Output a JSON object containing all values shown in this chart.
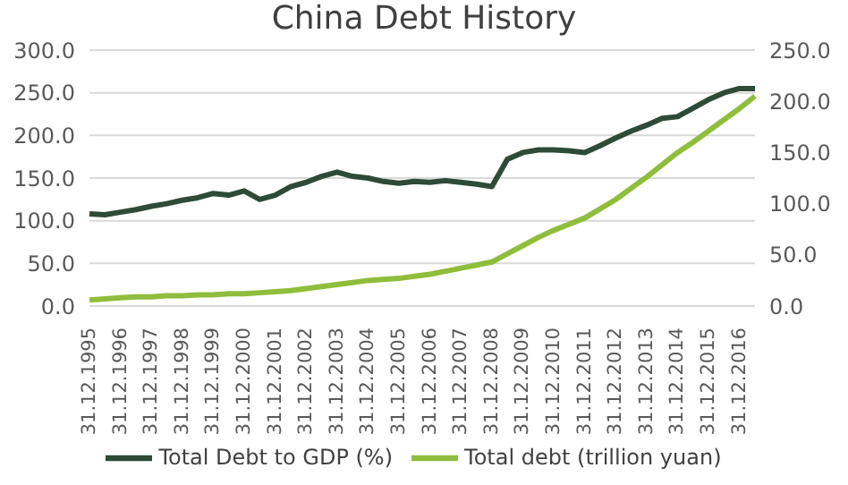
{
  "chart_data": {
    "type": "line",
    "title": "China Debt History",
    "categories": [
      "31.12.1995",
      null,
      "31.12.1996",
      null,
      "31.12.1997",
      null,
      "31.12.1998",
      null,
      "31.12.1999",
      null,
      "31.12.2000",
      null,
      "31.12.2001",
      null,
      "31.12.2002",
      null,
      "31.12.2003",
      null,
      "31.12.2004",
      null,
      "31.12.2005",
      null,
      "31.12.2006",
      null,
      "31.12.2007",
      null,
      "31.12.2008",
      null,
      "31.12.2009",
      null,
      "31.12.2010",
      null,
      "31.12.2011",
      null,
      "31.12.2012",
      null,
      "31.12.2013",
      null,
      "31.12.2014",
      null,
      "31.12.2015",
      null,
      "31.12.2016",
      null
    ],
    "series": [
      {
        "name": "Total Debt to GDP  (%)",
        "color": "#2e4a38",
        "values": [
          108,
          107,
          110,
          113,
          117,
          120,
          124,
          127,
          132,
          130,
          135,
          125,
          130,
          140,
          145,
          152,
          157,
          152,
          150,
          146,
          144,
          146,
          145,
          147,
          145,
          143,
          140,
          172,
          180,
          183,
          183,
          182,
          180,
          188,
          197,
          205,
          212,
          220,
          222,
          232,
          242,
          250,
          255,
          255
        ]
      },
      {
        "name": "Total debt  (trillion yuan)",
        "color": "#8fbd3c",
        "axis": "y2",
        "values": [
          6,
          7,
          8,
          9,
          9,
          10,
          10,
          11,
          11,
          12,
          12,
          13,
          14,
          15,
          17,
          19,
          21,
          23,
          25,
          26,
          27,
          29,
          31,
          34,
          37,
          40,
          43,
          51,
          59,
          67,
          74,
          80,
          86,
          95,
          104,
          115,
          126,
          138,
          150,
          160,
          171,
          182,
          193,
          205
        ]
      }
    ],
    "ylim": [
      0,
      300
    ],
    "yticks": [
      {
        "value": 0,
        "label": "0.0"
      },
      {
        "value": 50,
        "label": "50.0"
      },
      {
        "value": 100,
        "label": "100.0"
      },
      {
        "value": 150,
        "label": "150.0"
      },
      {
        "value": 200,
        "label": "200.0"
      },
      {
        "value": 250,
        "label": "250.0"
      },
      {
        "value": 300,
        "label": "300.0"
      }
    ],
    "y2lim": [
      0,
      250
    ],
    "y2ticks": [
      {
        "value": 0,
        "label": "0.0"
      },
      {
        "value": 50,
        "label": "50.0"
      },
      {
        "value": 100,
        "label": "100.0"
      },
      {
        "value": 150,
        "label": "150.0"
      },
      {
        "value": 200,
        "label": "200.0"
      },
      {
        "value": 250,
        "label": "250.0"
      }
    ],
    "grid": "y",
    "legend": "bottom",
    "marker": "none",
    "line_style": "solid"
  }
}
